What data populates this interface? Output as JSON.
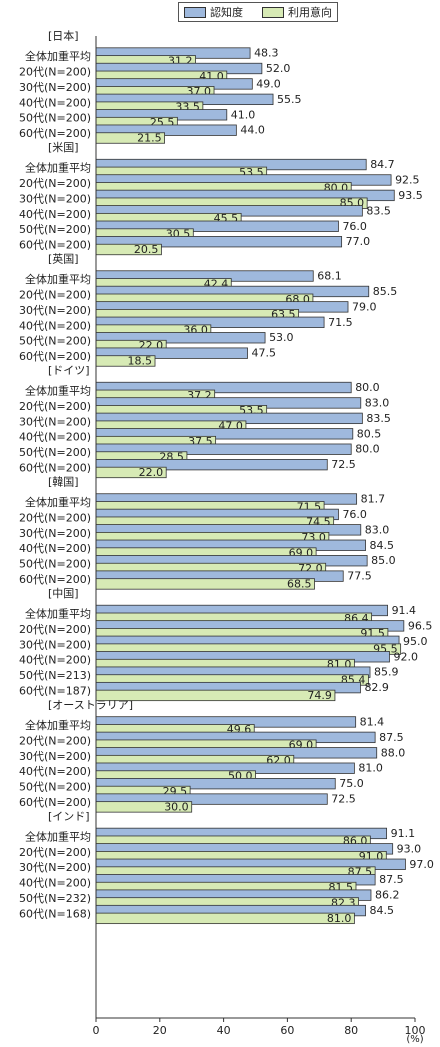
{
  "chart_data": {
    "type": "bar",
    "orientation": "horizontal",
    "legend": {
      "placement": "top-right",
      "entries": [
        "認知度",
        "利用意向"
      ]
    },
    "series_colors": {
      "awareness": "#9fb9dd",
      "intent": "#d7eab5"
    },
    "unit_label": "(%)",
    "xlim": [
      0,
      100
    ],
    "x_ticks": [
      "0",
      "20",
      "40",
      "60",
      "80",
      "100"
    ],
    "grid": false,
    "groups": [
      {
        "label": "[日本]",
        "rows": [
          {
            "label": "全体加重平均",
            "awareness": 48.3,
            "awareness_label": "48.3",
            "intent": 31.2,
            "intent_label": "31.2"
          },
          {
            "label": "20代(N=200)",
            "awareness": 52.0,
            "awareness_label": "52.0",
            "intent": 41.0,
            "intent_label": "41.0"
          },
          {
            "label": "30代(N=200)",
            "awareness": 49.0,
            "awareness_label": "49.0",
            "intent": 37.0,
            "intent_label": "37.0"
          },
          {
            "label": "40代(N=200)",
            "awareness": 55.5,
            "awareness_label": "55.5",
            "intent": 33.5,
            "intent_label": "33.5"
          },
          {
            "label": "50代(N=200)",
            "awareness": 41.0,
            "awareness_label": "41.0",
            "intent": 25.5,
            "intent_label": "25.5"
          },
          {
            "label": "60代(N=200)",
            "awareness": 44.0,
            "awareness_label": "44.0",
            "intent": 21.5,
            "intent_label": "21.5"
          }
        ]
      },
      {
        "label": "[米国]",
        "rows": [
          {
            "label": "全体加重平均",
            "awareness": 84.7,
            "awareness_label": "84.7",
            "intent": 53.5,
            "intent_label": "53.5"
          },
          {
            "label": "20代(N=200)",
            "awareness": 92.5,
            "awareness_label": "92.5",
            "intent": 80.0,
            "intent_label": "80.0"
          },
          {
            "label": "30代(N=200)",
            "awareness": 93.5,
            "awareness_label": "93.5",
            "intent": 85.0,
            "intent_label": "85.0"
          },
          {
            "label": "40代(N=200)",
            "awareness": 83.5,
            "awareness_label": "83.5",
            "intent": 45.5,
            "intent_label": "45.5"
          },
          {
            "label": "50代(N=200)",
            "awareness": 76.0,
            "awareness_label": "76.0",
            "intent": 30.5,
            "intent_label": "30.5"
          },
          {
            "label": "60代(N=200)",
            "awareness": 77.0,
            "awareness_label": "77.0",
            "intent": 20.5,
            "intent_label": "20.5"
          }
        ]
      },
      {
        "label": "[英国]",
        "rows": [
          {
            "label": "全体加重平均",
            "awareness": 68.1,
            "awareness_label": "68.1",
            "intent": 42.4,
            "intent_label": "42.4"
          },
          {
            "label": "20代(N=200)",
            "awareness": 85.5,
            "awareness_label": "85.5",
            "intent": 68.0,
            "intent_label": "68.0"
          },
          {
            "label": "30代(N=200)",
            "awareness": 79.0,
            "awareness_label": "79.0",
            "intent": 63.5,
            "intent_label": "63.5"
          },
          {
            "label": "40代(N=200)",
            "awareness": 71.5,
            "awareness_label": "71.5",
            "intent": 36.0,
            "intent_label": "36.0"
          },
          {
            "label": "50代(N=200)",
            "awareness": 53.0,
            "awareness_label": "53.0",
            "intent": 22.0,
            "intent_label": "22.0"
          },
          {
            "label": "60代(N=200)",
            "awareness": 47.5,
            "awareness_label": "47.5",
            "intent": 18.5,
            "intent_label": "18.5"
          }
        ]
      },
      {
        "label": "[ドイツ]",
        "rows": [
          {
            "label": "全体加重平均",
            "awareness": 80.0,
            "awareness_label": "80.0",
            "intent": 37.2,
            "intent_label": "37.2"
          },
          {
            "label": "20代(N=200)",
            "awareness": 83.0,
            "awareness_label": "83.0",
            "intent": 53.5,
            "intent_label": "53.5"
          },
          {
            "label": "30代(N=200)",
            "awareness": 83.5,
            "awareness_label": "83.5",
            "intent": 47.0,
            "intent_label": "47.0"
          },
          {
            "label": "40代(N=200)",
            "awareness": 80.5,
            "awareness_label": "80.5",
            "intent": 37.5,
            "intent_label": "37.5"
          },
          {
            "label": "50代(N=200)",
            "awareness": 80.0,
            "awareness_label": "80.0",
            "intent": 28.5,
            "intent_label": "28.5"
          },
          {
            "label": "60代(N=200)",
            "awareness": 72.5,
            "awareness_label": "72.5",
            "intent": 22.0,
            "intent_label": "22.0"
          }
        ]
      },
      {
        "label": "[韓国]",
        "rows": [
          {
            "label": "全体加重平均",
            "awareness": 81.7,
            "awareness_label": "81.7",
            "intent": 71.5,
            "intent_label": "71.5"
          },
          {
            "label": "20代(N=200)",
            "awareness": 76.0,
            "awareness_label": "76.0",
            "intent": 74.5,
            "intent_label": "74.5"
          },
          {
            "label": "30代(N=200)",
            "awareness": 83.0,
            "awareness_label": "83.0",
            "intent": 73.0,
            "intent_label": "73.0"
          },
          {
            "label": "40代(N=200)",
            "awareness": 84.5,
            "awareness_label": "84.5",
            "intent": 69.0,
            "intent_label": "69.0"
          },
          {
            "label": "50代(N=200)",
            "awareness": 85.0,
            "awareness_label": "85.0",
            "intent": 72.0,
            "intent_label": "72.0"
          },
          {
            "label": "60代(N=200)",
            "awareness": 77.5,
            "awareness_label": "77.5",
            "intent": 68.5,
            "intent_label": "68.5"
          }
        ]
      },
      {
        "label": "[中国]",
        "rows": [
          {
            "label": "全体加重平均",
            "awareness": 91.4,
            "awareness_label": "91.4",
            "intent": 86.4,
            "intent_label": "86.4"
          },
          {
            "label": "20代(N=200)",
            "awareness": 96.5,
            "awareness_label": "96.5",
            "intent": 91.5,
            "intent_label": "91.5"
          },
          {
            "label": "30代(N=200)",
            "awareness": 95.0,
            "awareness_label": "95.0",
            "intent": 95.5,
            "intent_label": "95.5"
          },
          {
            "label": "40代(N=200)",
            "awareness": 92.0,
            "awareness_label": "92.0",
            "intent": 81.0,
            "intent_label": "81.0"
          },
          {
            "label": "50代(N=213)",
            "awareness": 85.9,
            "awareness_label": "85.9",
            "intent": 85.4,
            "intent_label": "85.4"
          },
          {
            "label": "60代(N=187)",
            "awareness": 82.9,
            "awareness_label": "82.9",
            "intent": 74.9,
            "intent_label": "74.9"
          }
        ]
      },
      {
        "label": "[オーストラリア]",
        "rows": [
          {
            "label": "全体加重平均",
            "awareness": 81.4,
            "awareness_label": "81.4",
            "intent": 49.6,
            "intent_label": "49.6"
          },
          {
            "label": "20代(N=200)",
            "awareness": 87.5,
            "awareness_label": "87.5",
            "intent": 69.0,
            "intent_label": "69.0"
          },
          {
            "label": "30代(N=200)",
            "awareness": 88.0,
            "awareness_label": "88.0",
            "intent": 62.0,
            "intent_label": "62.0"
          },
          {
            "label": "40代(N=200)",
            "awareness": 81.0,
            "awareness_label": "81.0",
            "intent": 50.0,
            "intent_label": "50.0"
          },
          {
            "label": "50代(N=200)",
            "awareness": 75.0,
            "awareness_label": "75.0",
            "intent": 29.5,
            "intent_label": "29.5"
          },
          {
            "label": "60代(N=200)",
            "awareness": 72.5,
            "awareness_label": "72.5",
            "intent": 30.0,
            "intent_label": "30.0"
          }
        ]
      },
      {
        "label": "[インド]",
        "rows": [
          {
            "label": "全体加重平均",
            "awareness": 91.1,
            "awareness_label": "91.1",
            "intent": 86.0,
            "intent_label": "86.0"
          },
          {
            "label": "20代(N=200)",
            "awareness": 93.0,
            "awareness_label": "93.0",
            "intent": 91.0,
            "intent_label": "91.0"
          },
          {
            "label": "30代(N=200)",
            "awareness": 97.0,
            "awareness_label": "97.0",
            "intent": 87.5,
            "intent_label": "87.5"
          },
          {
            "label": "40代(N=200)",
            "awareness": 87.5,
            "awareness_label": "87.5",
            "intent": 81.5,
            "intent_label": "81.5"
          },
          {
            "label": "50代(N=232)",
            "awareness": 86.2,
            "awareness_label": "86.2",
            "intent": 82.3,
            "intent_label": "82.3"
          },
          {
            "label": "60代(N=168)",
            "awareness": 84.5,
            "awareness_label": "84.5",
            "intent": 81.0,
            "intent_label": "81.0"
          }
        ]
      }
    ]
  }
}
